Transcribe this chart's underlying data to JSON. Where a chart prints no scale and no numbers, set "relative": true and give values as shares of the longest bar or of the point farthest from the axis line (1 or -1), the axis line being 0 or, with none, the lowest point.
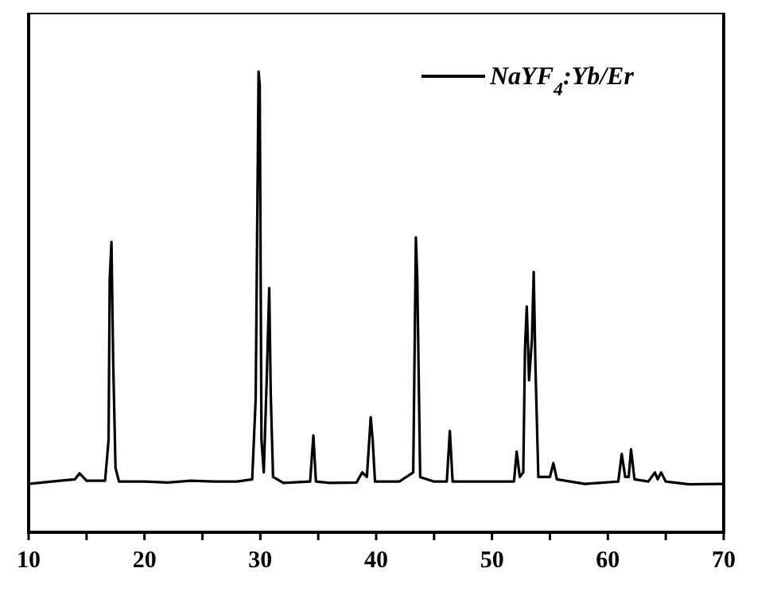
{
  "chart_data": {
    "type": "line",
    "relative": true,
    "xlim": [
      10,
      70
    ],
    "xticks": [
      10,
      {
        "value": 15,
        "label": null
      },
      20,
      {
        "value": 25,
        "label": null
      },
      30,
      {
        "value": 35,
        "label": null
      },
      40,
      {
        "value": 45,
        "label": null
      },
      50,
      {
        "value": 55,
        "label": null
      },
      60,
      {
        "value": 65,
        "label": null
      },
      70
    ],
    "tick_labels": "x",
    "legend": "top right",
    "grid": false,
    "series": [
      {
        "name": "NaYF$_{4}$:Yb/Er",
        "color": "#000000",
        "x": [
          10,
          12,
          14,
          14.4,
          15,
          16.6,
          16.9,
          17.0,
          17.15,
          17.3,
          17.5,
          17.8,
          20,
          22,
          24,
          26,
          28,
          29.3,
          29.6,
          29.85,
          29.95,
          30.1,
          30.3,
          30.55,
          30.77,
          30.9,
          31.1,
          32,
          34.3,
          34.58,
          34.8,
          36,
          38.3,
          38.8,
          39.2,
          39.53,
          39.7,
          39.9,
          42,
          43.2,
          43.43,
          43.55,
          43.8,
          45,
          46.1,
          46.36,
          46.6,
          50,
          51.9,
          52.13,
          52.4,
          52.7,
          52.85,
          53.0,
          53.2,
          53.45,
          53.6,
          53.75,
          54,
          55,
          55.3,
          55.6,
          58,
          60.9,
          61.2,
          61.5,
          61.8,
          62.0,
          62.3,
          63.5,
          64.06,
          64.3,
          64.6,
          65,
          67,
          70
        ],
        "values": [
          0.105,
          0.11,
          0.115,
          0.128,
          0.112,
          0.112,
          0.2,
          0.55,
          0.63,
          0.37,
          0.14,
          0.11,
          0.11,
          0.108,
          0.112,
          0.11,
          0.11,
          0.115,
          0.29,
          1.0,
          0.97,
          0.2,
          0.13,
          0.33,
          0.53,
          0.3,
          0.12,
          0.107,
          0.11,
          0.21,
          0.11,
          0.107,
          0.108,
          0.13,
          0.12,
          0.25,
          0.2,
          0.11,
          0.11,
          0.13,
          0.64,
          0.55,
          0.12,
          0.11,
          0.11,
          0.22,
          0.11,
          0.11,
          0.11,
          0.175,
          0.12,
          0.13,
          0.4,
          0.49,
          0.33,
          0.42,
          0.565,
          0.36,
          0.12,
          0.12,
          0.15,
          0.115,
          0.105,
          0.11,
          0.17,
          0.12,
          0.12,
          0.18,
          0.115,
          0.11,
          0.13,
          0.115,
          0.13,
          0.11,
          0.104,
          0.105
        ]
      }
    ]
  }
}
